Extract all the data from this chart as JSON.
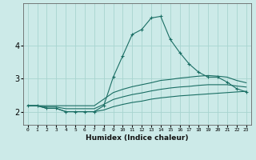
{
  "xlabel": "Humidex (Indice chaleur)",
  "ylabel": "",
  "bg_color": "#cceae8",
  "grid_color": "#a8d4d0",
  "line_color": "#1a6e64",
  "x_ticks": [
    0,
    1,
    2,
    3,
    4,
    5,
    6,
    7,
    8,
    9,
    10,
    11,
    12,
    13,
    14,
    15,
    16,
    17,
    18,
    19,
    20,
    21,
    22,
    23
  ],
  "y_ticks": [
    2,
    3,
    4
  ],
  "xlim": [
    -0.5,
    23.5
  ],
  "ylim": [
    1.6,
    5.3
  ],
  "series_main": {
    "x": [
      0,
      1,
      2,
      3,
      4,
      5,
      6,
      7,
      8,
      9,
      10,
      11,
      12,
      13,
      14,
      15,
      16,
      17,
      18,
      19,
      20,
      21,
      22,
      23
    ],
    "y": [
      2.18,
      2.18,
      2.1,
      2.1,
      2.0,
      2.0,
      2.0,
      2.0,
      2.18,
      3.05,
      3.7,
      4.35,
      4.5,
      4.85,
      4.9,
      4.2,
      3.8,
      3.45,
      3.2,
      3.05,
      3.05,
      2.9,
      2.7,
      2.6
    ]
  },
  "series_upper": {
    "x": [
      0,
      1,
      2,
      3,
      4,
      5,
      6,
      7,
      8,
      9,
      10,
      11,
      12,
      13,
      14,
      15,
      16,
      17,
      18,
      19,
      20,
      21,
      22,
      23
    ],
    "y": [
      2.18,
      2.18,
      2.18,
      2.18,
      2.18,
      2.18,
      2.18,
      2.18,
      2.38,
      2.58,
      2.68,
      2.76,
      2.82,
      2.88,
      2.95,
      2.98,
      3.02,
      3.05,
      3.08,
      3.1,
      3.08,
      3.05,
      2.95,
      2.88
    ]
  },
  "series_lower": {
    "x": [
      0,
      1,
      2,
      3,
      4,
      5,
      6,
      7,
      8,
      9,
      10,
      11,
      12,
      13,
      14,
      15,
      16,
      17,
      18,
      19,
      20,
      21,
      22,
      23
    ],
    "y": [
      2.18,
      2.18,
      2.1,
      2.1,
      2.0,
      2.0,
      2.0,
      2.0,
      2.05,
      2.15,
      2.22,
      2.28,
      2.32,
      2.38,
      2.42,
      2.45,
      2.48,
      2.5,
      2.52,
      2.54,
      2.56,
      2.58,
      2.6,
      2.62
    ]
  },
  "series_mid": {
    "x": [
      0,
      1,
      2,
      3,
      4,
      5,
      6,
      7,
      8,
      9,
      10,
      11,
      12,
      13,
      14,
      15,
      16,
      17,
      18,
      19,
      20,
      21,
      22,
      23
    ],
    "y": [
      2.18,
      2.18,
      2.14,
      2.14,
      2.09,
      2.09,
      2.09,
      2.09,
      2.22,
      2.37,
      2.45,
      2.52,
      2.57,
      2.63,
      2.68,
      2.72,
      2.75,
      2.77,
      2.8,
      2.82,
      2.82,
      2.82,
      2.78,
      2.75
    ]
  }
}
